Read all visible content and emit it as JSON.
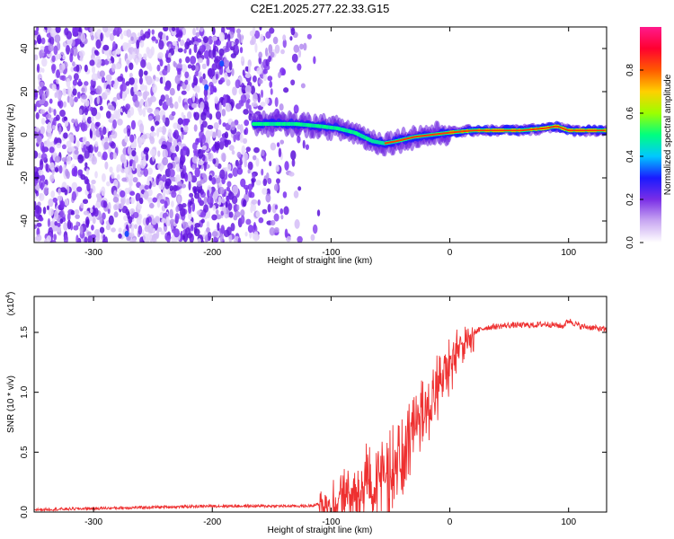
{
  "title": "C2E1.2025.277.22.33.G15",
  "chart_data": [
    {
      "type": "heatmap",
      "name": "spectrogram",
      "xlabel": "Height of straight line (km)",
      "ylabel": "Frequency (Hz)",
      "xlim": [
        -350,
        132
      ],
      "ylim": [
        -50,
        50
      ],
      "xticks": [
        -300,
        -200,
        -100,
        0,
        100
      ],
      "xtick_labels": [
        "-300",
        "-200",
        "-100",
        "0",
        "100"
      ],
      "yticks": [
        -40,
        -20,
        0,
        20,
        40
      ],
      "ytick_labels": [
        "-40",
        "-20",
        "0",
        "20",
        "40"
      ],
      "colorbar": {
        "label": "Normalized spectral amplitude",
        "range": [
          0,
          1
        ],
        "ticks": [
          0,
          0.2,
          0.4,
          0.6,
          0.8
        ],
        "tick_labels": [
          "0.0",
          "0.2",
          "0.4",
          "0.6",
          "0.8"
        ],
        "colormap": [
          "#ffffff",
          "#c9a8f2",
          "#7a2ee6",
          "#1a1aff",
          "#00c8ff",
          "#00ff7f",
          "#9cff00",
          "#ffd000",
          "#ff5a00",
          "#ff0030",
          "#ff1a8c"
        ]
      },
      "signal_track": {
        "x": [
          -165,
          -150,
          -130,
          -110,
          -95,
          -80,
          -65,
          -55,
          -45,
          -30,
          -15,
          0,
          20,
          40,
          60,
          80,
          90,
          100,
          132
        ],
        "freq": [
          5,
          5,
          5,
          4,
          3,
          1,
          -3,
          -4,
          -3,
          -1,
          0,
          1,
          2,
          2,
          2,
          3,
          4,
          2,
          2
        ]
      },
      "noise_region": {
        "x_start": -350,
        "x_end": -130
      }
    },
    {
      "type": "line",
      "name": "snr",
      "xlabel": "Height of straight line (km)",
      "ylabel": "SNR (10 * v/v)",
      "multiplier_label": "(x10",
      "multiplier_exponent": "4",
      "multiplier_close": ")",
      "xlim": [
        -350,
        132
      ],
      "ylim": [
        0,
        1.8
      ],
      "xticks": [
        -300,
        -200,
        -100,
        0,
        100
      ],
      "xtick_labels": [
        "-300",
        "-200",
        "-100",
        "0",
        "100"
      ],
      "yticks": [
        0,
        0.5,
        1.0,
        1.5
      ],
      "ytick_labels": [
        "0.0",
        "0.5",
        "1.0",
        "1.5"
      ],
      "color": "#ee3030",
      "series": [
        {
          "x": [
            -350,
            -300,
            -250,
            -200,
            -150,
            -120,
            -100,
            -90,
            -80,
            -70,
            -60,
            -50,
            -40,
            -30,
            -20,
            -10,
            0,
            10,
            20,
            30,
            40,
            50,
            60,
            70,
            80,
            90,
            95,
            100,
            110,
            120,
            132
          ],
          "values": [
            0.02,
            0.03,
            0.04,
            0.05,
            0.05,
            0.05,
            0.08,
            0.13,
            0.2,
            0.27,
            0.32,
            0.4,
            0.55,
            0.72,
            0.9,
            1.08,
            1.28,
            1.42,
            1.5,
            1.54,
            1.55,
            1.56,
            1.56,
            1.56,
            1.57,
            1.56,
            1.55,
            1.6,
            1.55,
            1.54,
            1.52
          ]
        }
      ]
    }
  ]
}
